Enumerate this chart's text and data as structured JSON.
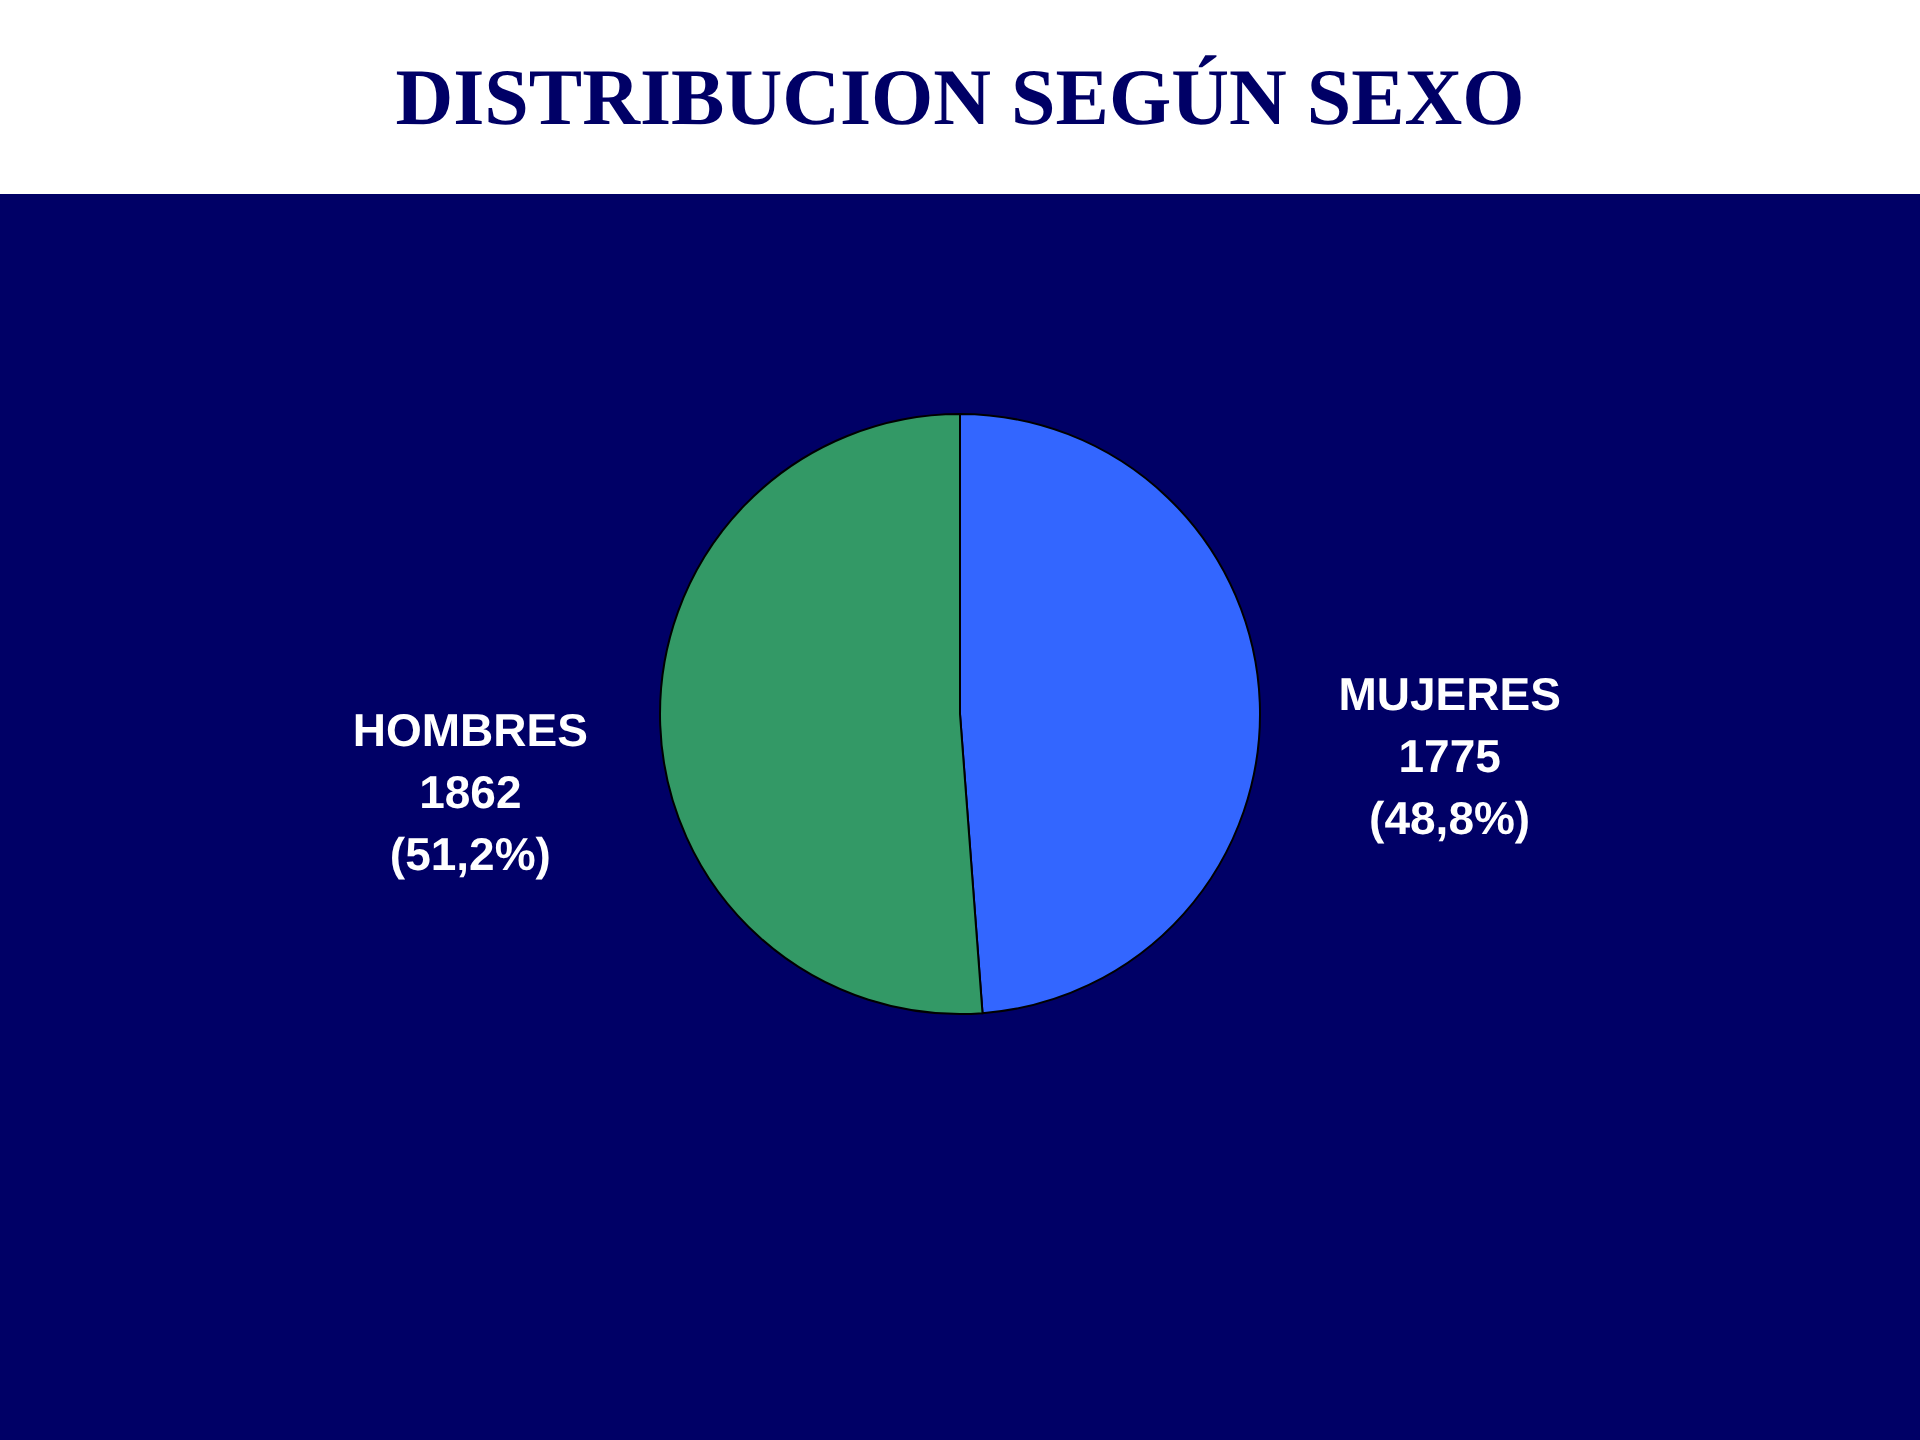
{
  "chart_data": {
    "type": "pie",
    "title": "DISTRIBUCION SEGÚN SEXO",
    "categories": [
      "MUJERES",
      "HOMBRES"
    ],
    "values": [
      1775,
      1862
    ],
    "colors": [
      "#3366ff",
      "#339966"
    ],
    "value_labels": [
      "1775\n(48,8%)",
      "1862\n(51,2%)"
    ]
  }
}
